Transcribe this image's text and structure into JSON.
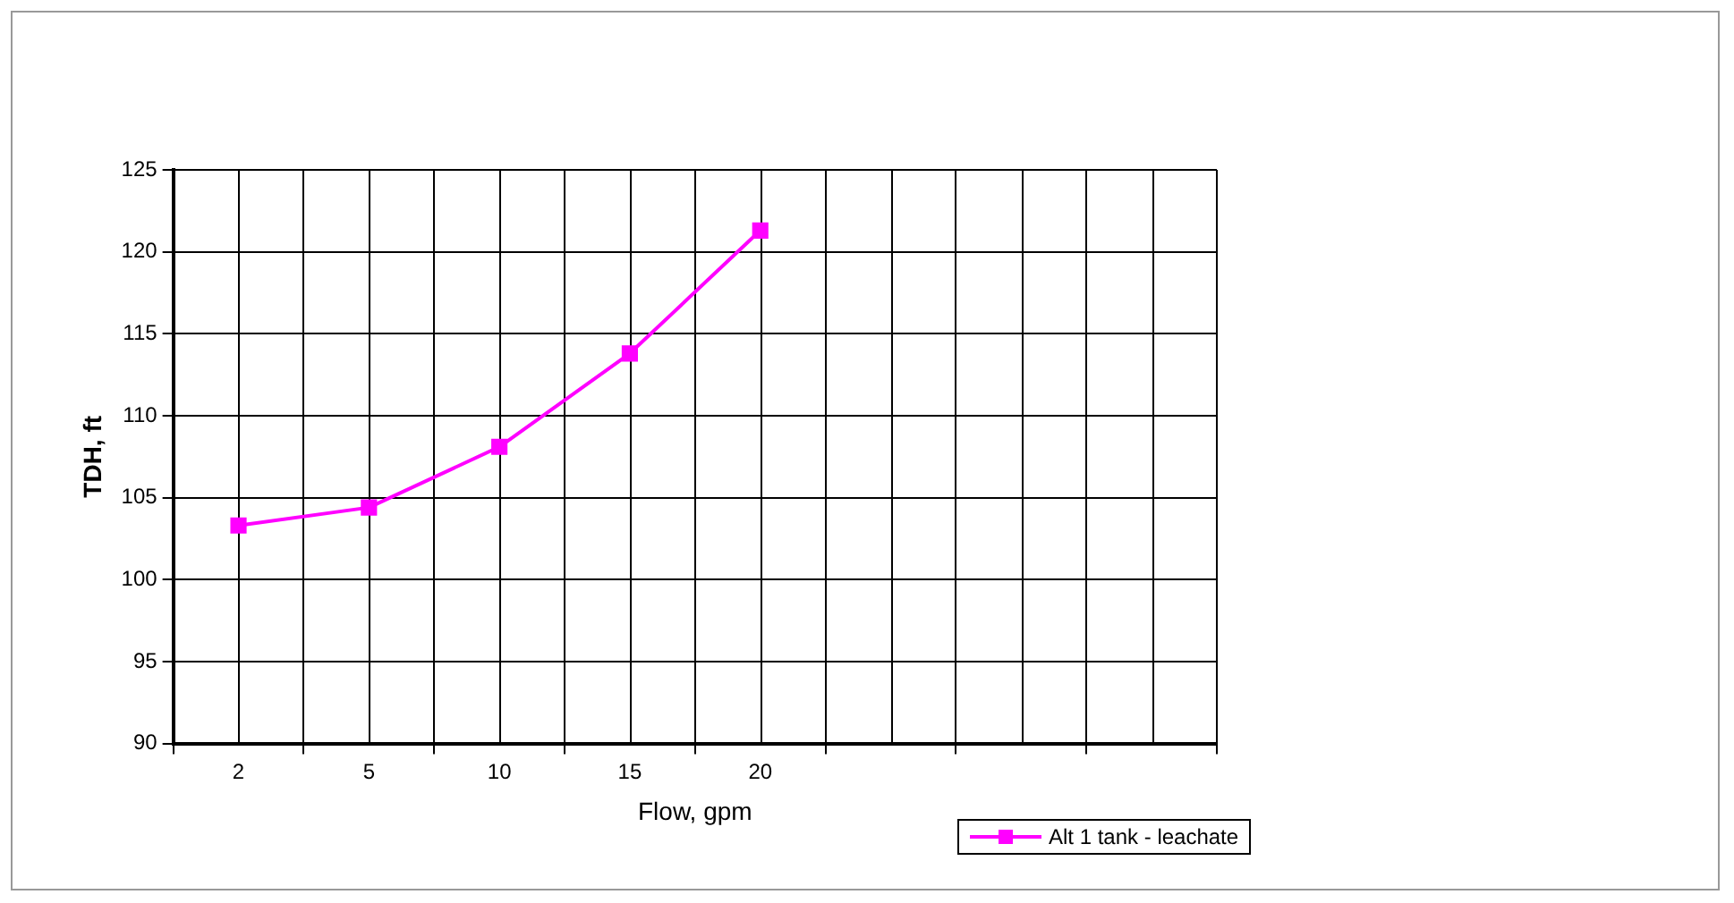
{
  "chart_data": {
    "type": "line",
    "xlabel": "Flow, gpm",
    "ylabel": "TDH, ft",
    "categories": [
      "2",
      "5",
      "10",
      "15",
      "20",
      null,
      null,
      null
    ],
    "series": [
      {
        "name": "Alt 1 tank - leachate",
        "color": "#ff00ff",
        "values": [
          103.3,
          104.4,
          108.1,
          113.8,
          121.3,
          null,
          null,
          null
        ]
      }
    ],
    "ylim": [
      90,
      125
    ],
    "yticks": [
      90,
      95,
      100,
      105,
      110,
      115,
      120,
      125
    ],
    "grid": true,
    "legend": "bottom",
    "marker": "square",
    "line_style": "solid"
  }
}
